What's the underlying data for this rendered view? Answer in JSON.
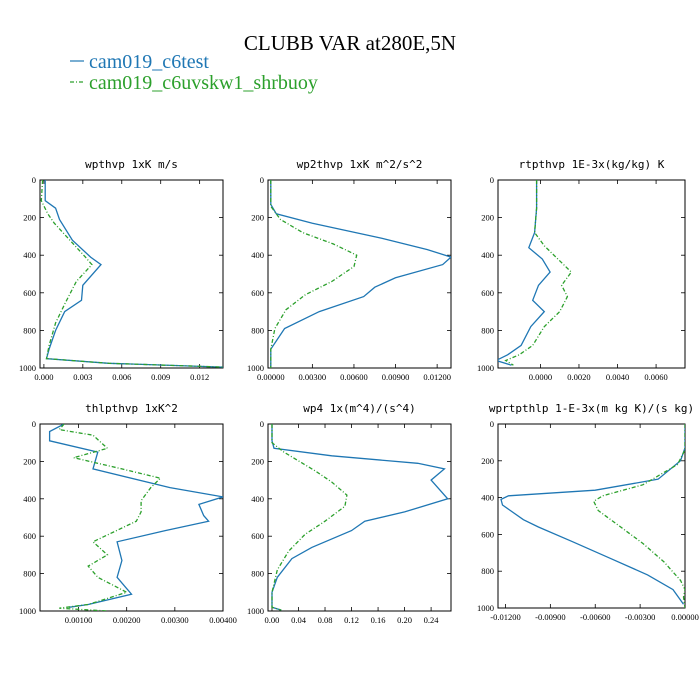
{
  "title": "CLUBB VAR at280E,5N",
  "legend": [
    {
      "label": "cam019_c6test",
      "color": "#1f77b4",
      "dash": ""
    },
    {
      "label": "cam019_c6uvskw1_shrbuoy",
      "color": "#2ca02c",
      "dash": "4,2,1,2"
    }
  ],
  "chart_data": [
    {
      "type": "line",
      "title": "wpthvp   1xK m/s",
      "xlim": [
        -0.0003,
        0.0138
      ],
      "ylim": [
        1000,
        0
      ],
      "xticks": [
        0.0,
        0.003,
        0.006,
        0.009,
        0.012
      ],
      "xtick_labels": [
        "0.000",
        "0.003",
        "0.006",
        "0.009",
        "0.012"
      ],
      "yticks": [
        0,
        200,
        400,
        600,
        800,
        1000
      ],
      "ytick_labels": [
        "0",
        "200",
        "400",
        "600",
        "800",
        "1000"
      ],
      "series": [
        {
          "name": "cam019_c6test",
          "points": [
            [
              0.0001,
              0
            ],
            [
              0.0001,
              110
            ],
            [
              0.0009,
              150
            ],
            [
              0.0012,
              210
            ],
            [
              0.0022,
              320
            ],
            [
              0.0036,
              410
            ],
            [
              0.0044,
              450
            ],
            [
              0.003,
              560
            ],
            [
              0.0029,
              640
            ],
            [
              0.0016,
              700
            ],
            [
              0.0009,
              800
            ],
            [
              0.0004,
              900
            ],
            [
              0.0002,
              950
            ],
            [
              0.005,
              975
            ],
            [
              0.0138,
              995
            ]
          ]
        },
        {
          "name": "cam019_c6uvskw1_shrbuoy",
          "points": [
            [
              -0.0001,
              0
            ],
            [
              -0.0002,
              110
            ],
            [
              0.0003,
              180
            ],
            [
              0.0008,
              230
            ],
            [
              0.002,
              320
            ],
            [
              0.0032,
              410
            ],
            [
              0.0037,
              450
            ],
            [
              0.0025,
              540
            ],
            [
              0.0016,
              660
            ],
            [
              0.0009,
              760
            ],
            [
              0.0004,
              880
            ],
            [
              0.0002,
              950
            ],
            [
              0.005,
              975
            ],
            [
              0.0138,
              995
            ]
          ]
        }
      ]
    },
    {
      "type": "line",
      "title": "wp2thvp   1xK m^2/s^2",
      "xlim": [
        -0.0002,
        0.013
      ],
      "ylim": [
        1000,
        0
      ],
      "xticks": [
        0.0,
        0.003,
        0.006,
        0.009,
        0.012
      ],
      "xtick_labels": [
        "0.00000",
        "0.00300",
        "0.00600",
        "0.00900",
        "0.01200"
      ],
      "yticks": [
        0,
        200,
        400,
        600,
        800,
        1000
      ],
      "ytick_labels": [
        "0",
        "200",
        "400",
        "600",
        "800",
        "1000"
      ],
      "series": [
        {
          "name": "cam019_c6test",
          "points": [
            [
              0.0,
              0
            ],
            [
              0.0,
              130
            ],
            [
              0.0004,
              180
            ],
            [
              0.003,
              230
            ],
            [
              0.008,
              310
            ],
            [
              0.0113,
              370
            ],
            [
              0.013,
              410
            ],
            [
              0.0124,
              450
            ],
            [
              0.009,
              520
            ],
            [
              0.0075,
              570
            ],
            [
              0.0067,
              620
            ],
            [
              0.0035,
              700
            ],
            [
              0.001,
              790
            ],
            [
              0.0,
              900
            ],
            [
              0.0,
              1000
            ]
          ]
        },
        {
          "name": "cam019_c6uvskw1_shrbuoy",
          "points": [
            [
              0.0,
              0
            ],
            [
              0.0,
              140
            ],
            [
              0.0007,
              210
            ],
            [
              0.0023,
              280
            ],
            [
              0.0045,
              340
            ],
            [
              0.0062,
              400
            ],
            [
              0.006,
              460
            ],
            [
              0.0044,
              540
            ],
            [
              0.0025,
              610
            ],
            [
              0.0011,
              690
            ],
            [
              0.0003,
              790
            ],
            [
              0.0,
              900
            ],
            [
              0.0,
              1000
            ]
          ]
        }
      ]
    },
    {
      "type": "line",
      "title": "rtpthvp   1E-3x(kg/kg) K",
      "xlim": [
        -0.0022,
        0.0075
      ],
      "ylim": [
        1000,
        0
      ],
      "xticks": [
        0.0,
        0.002,
        0.004,
        0.006
      ],
      "xtick_labels": [
        "0.0000",
        "0.0020",
        "0.0040",
        "0.0060"
      ],
      "yticks": [
        0,
        200,
        400,
        600,
        800,
        1000
      ],
      "ytick_labels": [
        "0",
        "200",
        "400",
        "600",
        "800",
        "1000"
      ],
      "series": [
        {
          "name": "cam019_c6test",
          "points": [
            [
              -0.0002,
              0
            ],
            [
              -0.0002,
              150
            ],
            [
              -0.0003,
              280
            ],
            [
              -0.0006,
              360
            ],
            [
              0.0001,
              420
            ],
            [
              0.0005,
              490
            ],
            [
              -0.0001,
              560
            ],
            [
              -0.0004,
              640
            ],
            [
              0.0002,
              700
            ],
            [
              -0.0005,
              780
            ],
            [
              -0.001,
              880
            ],
            [
              -0.0017,
              930
            ],
            [
              -0.0023,
              960
            ],
            [
              -0.0015,
              985
            ]
          ]
        },
        {
          "name": "cam019_c6uvskw1_shrbuoy",
          "points": [
            [
              -0.0002,
              0
            ],
            [
              -0.0002,
              150
            ],
            [
              -0.0003,
              280
            ],
            [
              0.0002,
              350
            ],
            [
              0.001,
              430
            ],
            [
              0.0016,
              490
            ],
            [
              0.0011,
              560
            ],
            [
              0.0014,
              620
            ],
            [
              0.001,
              700
            ],
            [
              0.0002,
              780
            ],
            [
              -0.0004,
              880
            ],
            [
              -0.0011,
              930
            ],
            [
              -0.0018,
              960
            ],
            [
              -0.0014,
              985
            ]
          ]
        }
      ]
    },
    {
      "type": "line",
      "title": "thlpthvp   1xK^2",
      "xlim": [
        0.0002,
        0.004
      ],
      "ylim": [
        1000,
        0
      ],
      "xticks": [
        0.001,
        0.002,
        0.003,
        0.004
      ],
      "xtick_labels": [
        "0.00100",
        "0.00200",
        "0.00300",
        "0.00400"
      ],
      "yticks": [
        0,
        200,
        400,
        600,
        800,
        1000
      ],
      "ytick_labels": [
        "0",
        "200",
        "400",
        "600",
        "800",
        "1000"
      ],
      "series": [
        {
          "name": "cam019_c6test",
          "points": [
            [
              0.0007,
              0
            ],
            [
              0.0004,
              40
            ],
            [
              0.0004,
              90
            ],
            [
              0.0014,
              150
            ],
            [
              0.0013,
              240
            ],
            [
              0.0029,
              340
            ],
            [
              0.004,
              390
            ],
            [
              0.0035,
              430
            ],
            [
              0.0036,
              490
            ],
            [
              0.0037,
              520
            ],
            [
              0.0028,
              570
            ],
            [
              0.0018,
              630
            ],
            [
              0.0019,
              730
            ],
            [
              0.0018,
              820
            ],
            [
              0.0021,
              910
            ],
            [
              0.0012,
              965
            ],
            [
              0.0008,
              980
            ]
          ]
        },
        {
          "name": "cam019_c6uvskw1_shrbuoy",
          "points": [
            [
              0.0007,
              0
            ],
            [
              0.0006,
              30
            ],
            [
              0.0013,
              60
            ],
            [
              0.0016,
              130
            ],
            [
              0.0009,
              180
            ],
            [
              0.0019,
              240
            ],
            [
              0.0027,
              290
            ],
            [
              0.0025,
              340
            ],
            [
              0.0023,
              410
            ],
            [
              0.0023,
              470
            ],
            [
              0.0022,
              520
            ],
            [
              0.0013,
              630
            ],
            [
              0.0016,
              700
            ],
            [
              0.0012,
              760
            ],
            [
              0.0014,
              820
            ],
            [
              0.002,
              900
            ],
            [
              0.0012,
              965
            ],
            [
              0.0006,
              985
            ],
            [
              0.0016,
              1000
            ]
          ]
        }
      ]
    },
    {
      "type": "line",
      "title": "wp4   1x(m^4)/(s^4)",
      "xlim": [
        -0.006,
        0.27
      ],
      "ylim": [
        1000,
        0
      ],
      "xticks": [
        0.0,
        0.04,
        0.08,
        0.12,
        0.16,
        0.2,
        0.24
      ],
      "xtick_labels": [
        "0.00",
        "0.04",
        "0.08",
        "0.12",
        "0.16",
        "0.20",
        "0.24"
      ],
      "yticks": [
        0,
        200,
        400,
        600,
        800,
        1000
      ],
      "ytick_labels": [
        "0",
        "200",
        "400",
        "600",
        "800",
        "1000"
      ],
      "series": [
        {
          "name": "cam019_c6test",
          "points": [
            [
              0.0,
              0
            ],
            [
              0.0,
              90
            ],
            [
              0.003,
              130
            ],
            [
              0.09,
              170
            ],
            [
              0.22,
              210
            ],
            [
              0.26,
              240
            ],
            [
              0.24,
              300
            ],
            [
              0.265,
              400
            ],
            [
              0.2,
              470
            ],
            [
              0.14,
              520
            ],
            [
              0.12,
              570
            ],
            [
              0.06,
              660
            ],
            [
              0.03,
              720
            ],
            [
              0.008,
              820
            ],
            [
              0.0,
              900
            ],
            [
              0.0,
              980
            ],
            [
              0.014,
              995
            ]
          ]
        },
        {
          "name": "cam019_c6uvskw1_shrbuoy",
          "points": [
            [
              0.0,
              0
            ],
            [
              0.0,
              100
            ],
            [
              0.018,
              150
            ],
            [
              0.065,
              250
            ],
            [
              0.09,
              310
            ],
            [
              0.113,
              380
            ],
            [
              0.11,
              440
            ],
            [
              0.08,
              520
            ],
            [
              0.05,
              590
            ],
            [
              0.025,
              680
            ],
            [
              0.008,
              780
            ],
            [
              0.0,
              900
            ],
            [
              0.0,
              980
            ],
            [
              0.014,
              995
            ]
          ]
        }
      ]
    },
    {
      "type": "line",
      "title": "wprtpthlp   1-E-3x(m kg K)/(s kg)",
      "xlim": [
        -0.0125,
        0.0
      ],
      "ylim": [
        1000,
        0
      ],
      "xticks": [
        -0.012,
        -0.009,
        -0.006,
        -0.003,
        0.0
      ],
      "xtick_labels": [
        "-0.01200",
        "-0.00900",
        "-0.00600",
        "-0.00300",
        "0.00000"
      ],
      "yticks": [
        0,
        200,
        400,
        600,
        800,
        1000
      ],
      "ytick_labels": [
        "0",
        "200",
        "400",
        "600",
        "800",
        "1000"
      ],
      "series": [
        {
          "name": "cam019_c6test",
          "points": [
            [
              0.0,
              0
            ],
            [
              0.0,
              130
            ],
            [
              -0.0003,
              200
            ],
            [
              -0.0018,
              300
            ],
            [
              -0.006,
              360
            ],
            [
              -0.0118,
              390
            ],
            [
              -0.0123,
              410
            ],
            [
              -0.0122,
              440
            ],
            [
              -0.0108,
              520
            ],
            [
              -0.0098,
              560
            ],
            [
              -0.0075,
              640
            ],
            [
              -0.005,
              730
            ],
            [
              -0.0025,
              820
            ],
            [
              -0.0008,
              900
            ],
            [
              -0.0001,
              980
            ]
          ]
        },
        {
          "name": "cam019_c6uvskw1_shrbuoy",
          "points": [
            [
              0.0,
              0
            ],
            [
              0.0,
              140
            ],
            [
              -0.0005,
              220
            ],
            [
              -0.0028,
              330
            ],
            [
              -0.0055,
              390
            ],
            [
              -0.0061,
              420
            ],
            [
              -0.0058,
              470
            ],
            [
              -0.0043,
              560
            ],
            [
              -0.0028,
              650
            ],
            [
              -0.0014,
              750
            ],
            [
              -0.0003,
              850
            ],
            [
              0.0,
              900
            ],
            [
              -0.0001,
              940
            ],
            [
              0.0,
              1000
            ]
          ]
        }
      ]
    }
  ]
}
